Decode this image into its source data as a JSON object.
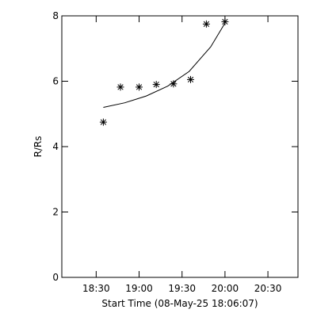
{
  "chart_data": {
    "type": "scatter",
    "xlabel": "Start Time (08-May-25 18:06:07)",
    "ylabel": "R/Rs",
    "xlim": [
      "18:06",
      "20:51"
    ],
    "ylim": [
      0,
      8
    ],
    "x_ticks": [
      "18:30",
      "19:00",
      "19:30",
      "20:00",
      "20:30"
    ],
    "y_ticks": [
      0,
      2,
      4,
      6,
      8
    ],
    "grid": false,
    "series": [
      {
        "marker": "asterisk",
        "x": [
          "18:35",
          "18:47",
          "19:00",
          "19:12",
          "19:24",
          "19:36",
          "19:47",
          "20:00"
        ],
        "y": [
          4.75,
          5.82,
          5.82,
          5.9,
          5.92,
          6.05,
          7.75,
          7.82
        ]
      },
      {
        "style": "line",
        "x": [
          "18:35",
          "18:50",
          "19:05",
          "19:20",
          "19:35",
          "19:50",
          "20:00"
        ],
        "y": [
          5.2,
          5.34,
          5.55,
          5.85,
          6.3,
          7.05,
          7.78
        ]
      }
    ]
  }
}
